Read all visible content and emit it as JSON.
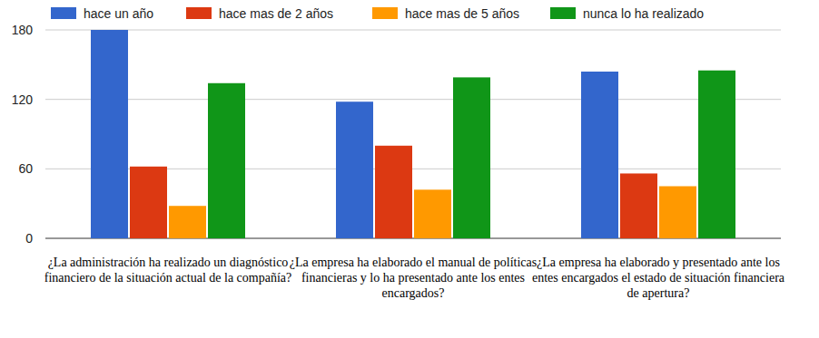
{
  "chart_data": {
    "type": "bar",
    "categories": [
      "¿La administración ha realizado un diagnóstico financiero de la situación actual de la compañía?",
      "¿La empresa ha elaborado el manual de políticas financieras y lo ha presentado ante los entes encargados?",
      "¿La empresa ha elaborado y presentado ante los entes encargados el estado de situación financiera de apertura?"
    ],
    "series": [
      {
        "name": "hace un año",
        "color": "#3366cc",
        "values": [
          180,
          118,
          144
        ]
      },
      {
        "name": "hace mas de 2 años",
        "color": "#dc3912",
        "values": [
          62,
          80,
          56
        ]
      },
      {
        "name": "hace mas de 5 años",
        "color": "#ff9900",
        "values": [
          28,
          42,
          45
        ]
      },
      {
        "name": "nunca lo ha realizado",
        "color": "#109618",
        "values": [
          134,
          139,
          145
        ]
      }
    ],
    "ylim": [
      0,
      180
    ],
    "yticks": [
      0,
      60,
      120,
      180
    ],
    "grid": true,
    "legend": "top"
  }
}
